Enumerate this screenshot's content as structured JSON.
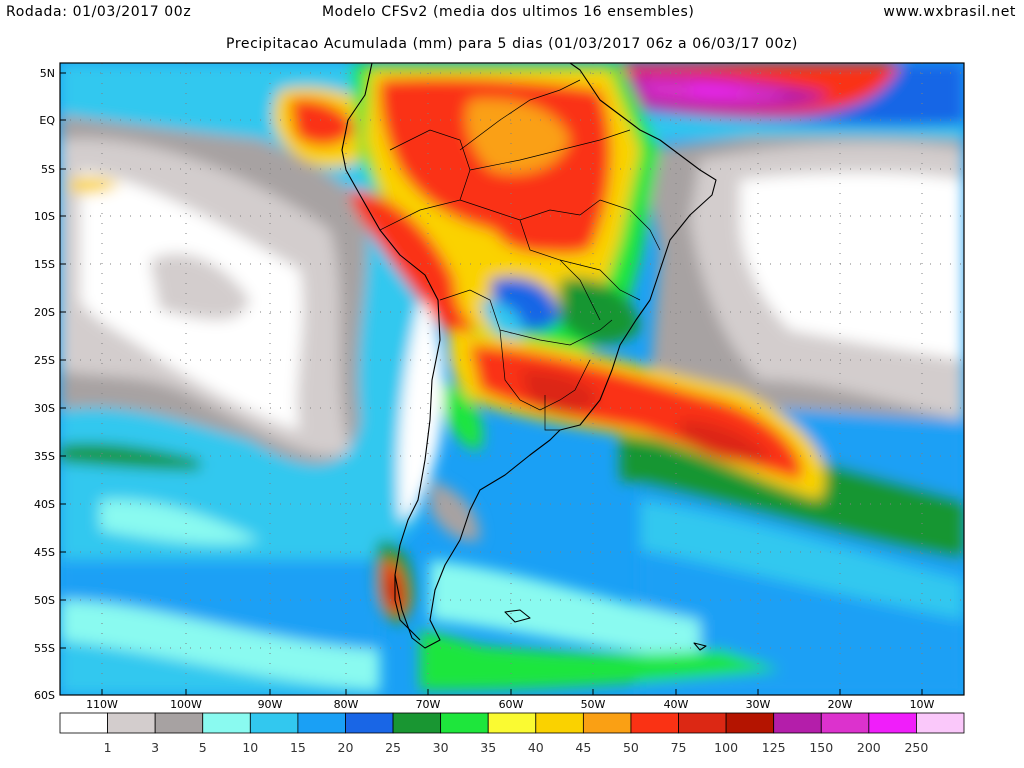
{
  "header": {
    "run": "Rodada: 01/03/2017 00z",
    "model": "Modelo CFSv2 (media dos ultimos 16 ensembles)",
    "site": "www.wxbrasil.net",
    "title": "Precipitacao Acumulada (mm) para 5 dias (01/03/2017 06z a 06/03/17 00z)"
  },
  "axes": {
    "lat_labels": [
      "5N",
      "EQ",
      "5S",
      "10S",
      "15S",
      "20S",
      "25S",
      "30S",
      "35S",
      "40S",
      "45S",
      "50S",
      "55S",
      "60S"
    ],
    "lon_labels": [
      "110W",
      "100W",
      "90W",
      "80W",
      "70W",
      "60W",
      "50W",
      "40W",
      "30W",
      "20W",
      "10W"
    ]
  },
  "colorbar": {
    "colors": [
      "#ffffff",
      "#d3cdcd",
      "#a7a2a2",
      "#8afaf0",
      "#32c8ef",
      "#1aa0f5",
      "#1966e6",
      "#199632",
      "#1ee63c",
      "#fafa32",
      "#fad200",
      "#faa014",
      "#fa3214",
      "#dc2814",
      "#b41400",
      "#b41eaa",
      "#dc32cd",
      "#f01efa",
      "#fac8fa"
    ],
    "labels": [
      "1",
      "3",
      "5",
      "10",
      "15",
      "20",
      "25",
      "30",
      "35",
      "40",
      "45",
      "50",
      "75",
      "100",
      "125",
      "150",
      "200",
      "250"
    ]
  }
}
